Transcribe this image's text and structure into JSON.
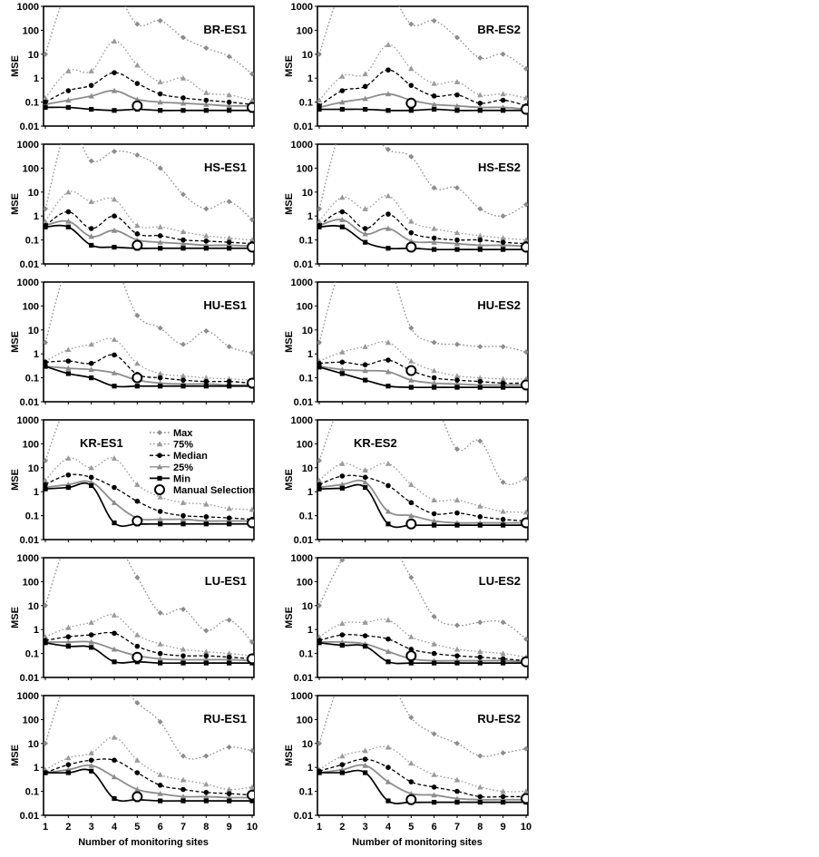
{
  "chart_data": {
    "type": "line",
    "x": [
      1,
      2,
      3,
      4,
      5,
      6,
      7,
      8,
      9,
      10
    ],
    "xlabel": "Number of monitoring sites",
    "ylabel": "MSE",
    "y_scale": "log",
    "ylim": [
      0.01,
      1000
    ],
    "y_ticks": [
      "0.01",
      "0.1",
      "1",
      "10",
      "100",
      "1000"
    ],
    "legend": {
      "placement": "inside KR-ES1 panel, top-center",
      "entries": [
        {
          "key": "max",
          "label": "Max"
        },
        {
          "key": "p75",
          "label": "75%"
        },
        {
          "key": "median",
          "label": "Median"
        },
        {
          "key": "p25",
          "label": "25%"
        },
        {
          "key": "min",
          "label": "Min"
        },
        {
          "key": "manual",
          "label": "Manual Selection"
        }
      ]
    },
    "series_styles": {
      "max": {
        "color": "#8c8c8c",
        "dash": "dotted",
        "marker": "diamond"
      },
      "p75": {
        "color": "#9a9a9a",
        "dash": "dotted",
        "marker": "triangle"
      },
      "median": {
        "color": "#000000",
        "dash": "dashed",
        "marker": "circle"
      },
      "p25": {
        "color": "#8c8c8c",
        "dash": "solid",
        "marker": "triangle"
      },
      "min": {
        "color": "#000000",
        "dash": "solid",
        "marker": "square"
      },
      "manual": {
        "color": "#000000",
        "marker": "open-circle"
      }
    },
    "panels": [
      {
        "title": "BR-ES1",
        "max": [
          10,
          5000,
          5000,
          5000,
          180,
          250,
          50,
          18,
          8,
          1.5
        ],
        "p75": [
          0.15,
          2,
          2,
          35,
          3.5,
          0.7,
          1,
          0.25,
          0.2,
          0.12
        ],
        "median": [
          0.1,
          0.3,
          0.5,
          1.7,
          0.6,
          0.22,
          0.15,
          0.12,
          0.1,
          0.08
        ],
        "p25": [
          0.08,
          0.12,
          0.18,
          0.3,
          0.13,
          0.1,
          0.09,
          0.08,
          0.07,
          0.07
        ],
        "min": [
          0.06,
          0.06,
          0.05,
          0.045,
          0.05,
          0.045,
          0.045,
          0.045,
          0.045,
          0.045
        ],
        "manual": [
          {
            "x": 5,
            "y": 0.07
          },
          {
            "x": 10,
            "y": 0.06
          }
        ]
      },
      {
        "title": "BR-ES2",
        "max": [
          10,
          5000,
          5000,
          5000,
          180,
          250,
          50,
          7,
          10,
          2.5
        ],
        "p75": [
          0.12,
          1.2,
          1.5,
          25,
          2.5,
          0.6,
          0.7,
          0.2,
          0.22,
          0.15
        ],
        "median": [
          0.07,
          0.3,
          0.45,
          2.2,
          0.5,
          0.18,
          0.2,
          0.09,
          0.12,
          0.07
        ],
        "p25": [
          0.06,
          0.1,
          0.14,
          0.22,
          0.12,
          0.08,
          0.07,
          0.06,
          0.06,
          0.05
        ],
        "min": [
          0.05,
          0.05,
          0.05,
          0.045,
          0.045,
          0.05,
          0.045,
          0.045,
          0.045,
          0.045
        ],
        "manual": [
          {
            "x": 5,
            "y": 0.09
          },
          {
            "x": 10,
            "y": 0.05
          }
        ]
      },
      {
        "title": "HS-ES1",
        "max": [
          2,
          5000,
          200,
          500,
          350,
          100,
          8,
          2,
          4,
          0.7
        ],
        "p75": [
          0.6,
          10,
          4,
          5,
          0.4,
          0.35,
          0.22,
          0.15,
          0.12,
          0.1
        ],
        "median": [
          0.4,
          1.5,
          0.3,
          1,
          0.18,
          0.15,
          0.1,
          0.09,
          0.08,
          0.07
        ],
        "p25": [
          0.4,
          0.6,
          0.14,
          0.25,
          0.1,
          0.08,
          0.07,
          0.06,
          0.06,
          0.055
        ],
        "min": [
          0.35,
          0.35,
          0.06,
          0.05,
          0.045,
          0.045,
          0.045,
          0.045,
          0.045,
          0.045
        ],
        "manual": [
          {
            "x": 5,
            "y": 0.06
          },
          {
            "x": 10,
            "y": 0.05
          }
        ]
      },
      {
        "title": "HS-ES2",
        "max": [
          2,
          5000,
          5000,
          600,
          300,
          15,
          15,
          2,
          1,
          3
        ],
        "p75": [
          0.6,
          6,
          2,
          7,
          0.6,
          0.3,
          0.2,
          0.15,
          0.12,
          0.1
        ],
        "median": [
          0.4,
          1.5,
          0.3,
          1.2,
          0.2,
          0.12,
          0.1,
          0.1,
          0.08,
          0.07
        ],
        "p25": [
          0.4,
          0.7,
          0.18,
          0.3,
          0.09,
          0.08,
          0.07,
          0.06,
          0.06,
          0.055
        ],
        "min": [
          0.35,
          0.35,
          0.08,
          0.045,
          0.045,
          0.04,
          0.04,
          0.04,
          0.04,
          0.04
        ],
        "manual": [
          {
            "x": 5,
            "y": 0.05
          },
          {
            "x": 10,
            "y": 0.05
          }
        ]
      },
      {
        "title": "HU-ES1",
        "max": [
          3,
          5000,
          5000,
          5000,
          40,
          12,
          2.5,
          9,
          2,
          1.1
        ],
        "p75": [
          0.5,
          1.5,
          2.5,
          4,
          0.4,
          0.15,
          0.12,
          0.1,
          0.09,
          0.08
        ],
        "median": [
          0.45,
          0.5,
          0.4,
          0.9,
          0.14,
          0.1,
          0.08,
          0.07,
          0.07,
          0.06
        ],
        "p25": [
          0.3,
          0.25,
          0.22,
          0.16,
          0.08,
          0.06,
          0.055,
          0.055,
          0.05,
          0.05
        ],
        "min": [
          0.3,
          0.15,
          0.1,
          0.045,
          0.045,
          0.045,
          0.045,
          0.045,
          0.045,
          0.045
        ],
        "manual": [
          {
            "x": 5,
            "y": 0.1
          },
          {
            "x": 10,
            "y": 0.06
          }
        ]
      },
      {
        "title": "HU-ES2",
        "max": [
          3,
          5000,
          5000,
          5000,
          12,
          3,
          2.5,
          2,
          2,
          1.2
        ],
        "p75": [
          0.5,
          1.2,
          2,
          3,
          0.5,
          0.2,
          0.12,
          0.1,
          0.09,
          0.09
        ],
        "median": [
          0.4,
          0.45,
          0.35,
          0.55,
          0.2,
          0.1,
          0.08,
          0.07,
          0.06,
          0.06
        ],
        "p25": [
          0.3,
          0.22,
          0.2,
          0.18,
          0.08,
          0.06,
          0.055,
          0.05,
          0.05,
          0.05
        ],
        "min": [
          0.28,
          0.15,
          0.08,
          0.045,
          0.04,
          0.04,
          0.04,
          0.04,
          0.04,
          0.04
        ],
        "manual": [
          {
            "x": 5,
            "y": 0.2
          },
          {
            "x": 10,
            "y": 0.05
          }
        ]
      },
      {
        "title": "KR-ES1",
        "max": [
          20,
          5000,
          5000,
          5000,
          5000,
          5000,
          5000,
          5000,
          5000,
          5000
        ],
        "p75": [
          3,
          25,
          10,
          25,
          2,
          0.6,
          0.35,
          0.3,
          0.2,
          0.18
        ],
        "median": [
          2,
          5,
          4,
          1.5,
          0.4,
          0.15,
          0.1,
          0.09,
          0.08,
          0.07
        ],
        "p25": [
          1.5,
          2,
          2.5,
          0.35,
          0.08,
          0.07,
          0.07,
          0.06,
          0.06,
          0.06
        ],
        "min": [
          1.3,
          1.5,
          1.8,
          0.05,
          0.045,
          0.045,
          0.045,
          0.045,
          0.045,
          0.045
        ],
        "manual": [
          {
            "x": 5,
            "y": 0.06
          },
          {
            "x": 10,
            "y": 0.05
          }
        ]
      },
      {
        "title": "KR-ES2",
        "max": [
          20,
          5000,
          5000,
          5000,
          5000,
          5000,
          60,
          130,
          2.5,
          3.5
        ],
        "p75": [
          3,
          15,
          8,
          15,
          2,
          0.45,
          0.45,
          0.25,
          0.15,
          0.14
        ],
        "median": [
          2,
          4.5,
          4,
          1.8,
          0.35,
          0.12,
          0.13,
          0.09,
          0.07,
          0.06
        ],
        "p25": [
          1.5,
          2,
          2.5,
          0.15,
          0.1,
          0.06,
          0.05,
          0.05,
          0.05,
          0.05
        ],
        "min": [
          1.3,
          1.4,
          1.5,
          0.045,
          0.04,
          0.04,
          0.04,
          0.04,
          0.04,
          0.04
        ],
        "manual": [
          {
            "x": 5,
            "y": 0.045
          },
          {
            "x": 10,
            "y": 0.05
          }
        ]
      },
      {
        "title": "LU-ES1",
        "max": [
          10,
          5000,
          5000,
          5000,
          150,
          5,
          7,
          0.9,
          2.5,
          0.3
        ],
        "p75": [
          0.5,
          1.2,
          2,
          4,
          0.6,
          0.25,
          0.15,
          0.12,
          0.1,
          0.08
        ],
        "median": [
          0.35,
          0.5,
          0.6,
          0.7,
          0.2,
          0.1,
          0.08,
          0.08,
          0.07,
          0.06
        ],
        "p25": [
          0.3,
          0.3,
          0.3,
          0.15,
          0.08,
          0.06,
          0.055,
          0.055,
          0.055,
          0.05
        ],
        "min": [
          0.28,
          0.2,
          0.18,
          0.045,
          0.045,
          0.04,
          0.04,
          0.04,
          0.04,
          0.04
        ],
        "manual": [
          {
            "x": 5,
            "y": 0.07
          },
          {
            "x": 10,
            "y": 0.06
          }
        ]
      },
      {
        "title": "LU-ES2",
        "max": [
          10,
          800,
          5000,
          5000,
          150,
          3.5,
          1.5,
          2,
          2,
          0.4
        ],
        "p75": [
          0.5,
          1.8,
          2,
          2.5,
          0.5,
          0.25,
          0.15,
          0.12,
          0.1,
          0.07
        ],
        "median": [
          0.35,
          0.6,
          0.55,
          0.4,
          0.15,
          0.1,
          0.08,
          0.07,
          0.06,
          0.05
        ],
        "p25": [
          0.3,
          0.3,
          0.25,
          0.12,
          0.06,
          0.05,
          0.05,
          0.05,
          0.05,
          0.045
        ],
        "min": [
          0.28,
          0.22,
          0.2,
          0.045,
          0.04,
          0.04,
          0.04,
          0.04,
          0.04,
          0.04
        ],
        "manual": [
          {
            "x": 5,
            "y": 0.08
          },
          {
            "x": 10,
            "y": 0.045
          }
        ]
      },
      {
        "title": "RU-ES1",
        "max": [
          10,
          5000,
          5000,
          5000,
          500,
          80,
          3,
          3,
          7,
          5
        ],
        "p75": [
          0.8,
          2.5,
          4,
          18,
          2,
          0.5,
          0.3,
          0.2,
          0.12,
          0.15
        ],
        "median": [
          0.6,
          1.3,
          2,
          2,
          0.6,
          0.18,
          0.12,
          0.09,
          0.08,
          0.07
        ],
        "p25": [
          0.6,
          0.8,
          1.2,
          0.4,
          0.12,
          0.08,
          0.06,
          0.06,
          0.055,
          0.055
        ],
        "min": [
          0.6,
          0.6,
          0.7,
          0.05,
          0.045,
          0.04,
          0.04,
          0.04,
          0.04,
          0.04
        ],
        "manual": [
          {
            "x": 5,
            "y": 0.06
          },
          {
            "x": 10,
            "y": 0.07
          }
        ]
      },
      {
        "title": "RU-ES2",
        "max": [
          10,
          5000,
          5000,
          5000,
          120,
          25,
          10,
          3,
          4,
          6
        ],
        "p75": [
          0.8,
          3,
          5,
          7,
          1.5,
          0.5,
          0.3,
          0.15,
          0.1,
          0.1
        ],
        "median": [
          0.7,
          1.3,
          2.2,
          1,
          0.25,
          0.15,
          0.1,
          0.06,
          0.06,
          0.06
        ],
        "p25": [
          0.6,
          0.8,
          1.2,
          0.25,
          0.08,
          0.07,
          0.05,
          0.045,
          0.045,
          0.045
        ],
        "min": [
          0.6,
          0.6,
          0.6,
          0.04,
          0.035,
          0.035,
          0.035,
          0.035,
          0.035,
          0.035
        ],
        "manual": [
          {
            "x": 5,
            "y": 0.045
          },
          {
            "x": 10,
            "y": 0.05
          }
        ]
      }
    ]
  }
}
